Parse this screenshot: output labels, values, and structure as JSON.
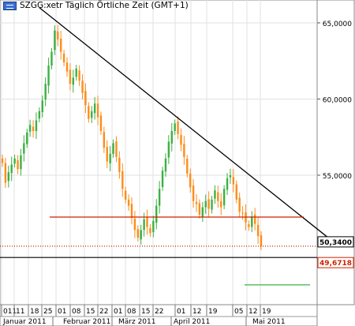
{
  "chart_data": {
    "type": "candlestick",
    "title": "SZGG:xetr Täglich Örtliche Zeit (GMT+1)",
    "instrument": "SZGG:xetr",
    "ylim": [
      46500,
      66500
    ],
    "y_ticks": [
      "65,0000",
      "60,0000",
      "55,0000"
    ],
    "y_tick_values": [
      65000,
      60000,
      55000
    ],
    "price_labels": [
      {
        "value": 50.34,
        "text": "50,3400",
        "color": "#000000"
      },
      {
        "value": 49.6718,
        "text": "49,6718",
        "color": "#cc2200"
      }
    ],
    "x_day_ticks": [
      "011",
      "11",
      "18",
      "25",
      "01",
      "08",
      "15",
      "22",
      "01",
      "08",
      "15",
      "22",
      "01",
      "12",
      "19",
      "05",
      "12",
      "19"
    ],
    "x_month_labels": [
      "Januar 2011",
      "Februar 2011",
      "März 2011",
      "April 2011",
      "Mai 2011"
    ],
    "up_color": "#3cb043",
    "down_color": "#ff8c1a",
    "closes": [
      55800,
      54500,
      55200,
      55700,
      56100,
      55400,
      56300,
      57100,
      57800,
      58300,
      57900,
      58600,
      59200,
      59900,
      61000,
      62200,
      63100,
      64500,
      63900,
      63100,
      62400,
      61800,
      61000,
      61400,
      62000,
      61200,
      60400,
      59600,
      58700,
      59200,
      59700,
      58800,
      57900,
      56800,
      55900,
      56400,
      57100,
      56200,
      55200,
      54100,
      53400,
      53000,
      52200,
      51400,
      50900,
      51400,
      52100,
      51600,
      51200,
      52000,
      53000,
      54100,
      55300,
      56100,
      57200,
      57900,
      58400,
      57700,
      57000,
      56200,
      55100,
      54200,
      53300,
      53100,
      52400,
      52900,
      53300,
      52800,
      53400,
      54000,
      53300,
      52900,
      54100,
      54800,
      55000,
      54400,
      53400,
      52600,
      52500,
      51900,
      51600,
      52300,
      51800,
      51000,
      50340
    ],
    "support_line": {
      "value": 52250,
      "color": "#cc2200"
    },
    "resistance_trendline": {
      "from": {
        "index": 12,
        "value": 66000
      },
      "to": {
        "index": 107,
        "value": 50700
      },
      "color": "#000000"
    },
    "horizontal_lines": [
      {
        "value": 50340,
        "color": "#cc2200",
        "style": "dotted"
      },
      {
        "value": 49600,
        "color": "#000000",
        "style": "solid"
      },
      {
        "value": 47800,
        "color": "#3cb043",
        "style": "solid",
        "from_index": 83,
        "to_index": 107
      }
    ]
  }
}
